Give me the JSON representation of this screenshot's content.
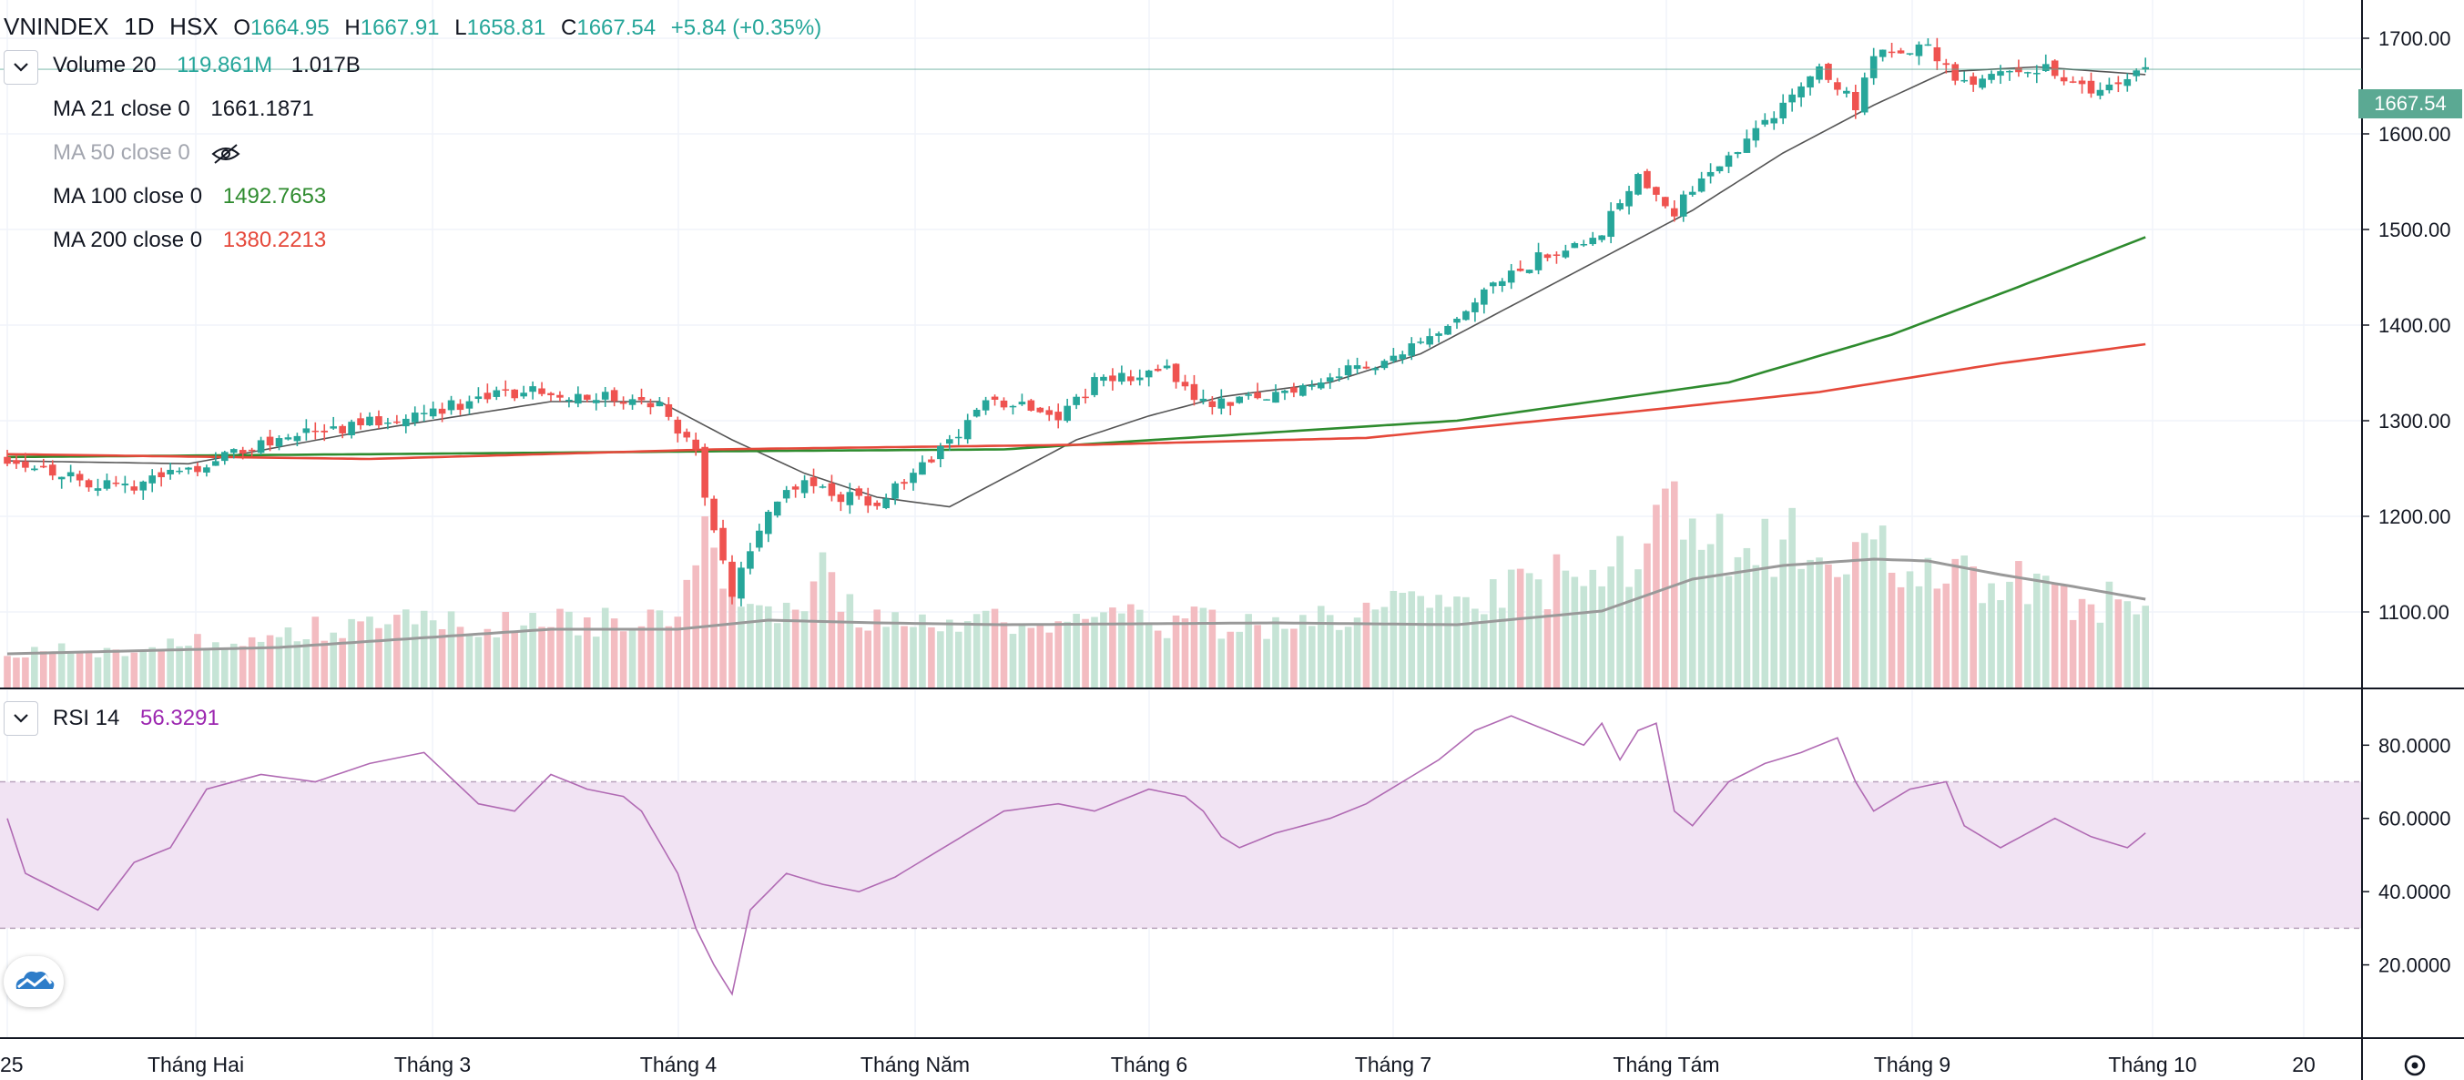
{
  "header": {
    "symbol": "VNINDEX",
    "interval": "1D",
    "exchange": "HSX",
    "open_label": "O",
    "open": "1664.95",
    "high_label": "H",
    "high": "1667.91",
    "low_label": "L",
    "low": "1658.81",
    "close_label": "C",
    "close": "1667.54",
    "change": "+5.84 (+0.35%)"
  },
  "indicators": {
    "volume": {
      "label": "Volume 20",
      "value1": "119.861M",
      "value2": "1.017B"
    },
    "ma21": {
      "label": "MA 21 close 0",
      "value": "1661.1871"
    },
    "ma50": {
      "label": "MA 50 close 0",
      "hidden": true
    },
    "ma100": {
      "label": "MA 100 close 0",
      "value": "1492.7653"
    },
    "ma200": {
      "label": "MA 200 close 0",
      "value": "1380.2213"
    },
    "rsi": {
      "label": "RSI 14",
      "value": "56.3291"
    }
  },
  "price_axis": {
    "ticks": [
      "1700.00",
      "1600.00",
      "1500.00",
      "1400.00",
      "1300.00",
      "1200.00",
      "1100.00"
    ],
    "current_price": "1667.54"
  },
  "rsi_axis": {
    "ticks": [
      "80.0000",
      "60.0000",
      "40.0000",
      "20.0000"
    ]
  },
  "time_axis": {
    "labels": [
      "25",
      "Tháng Hai",
      "Tháng 3",
      "Tháng 4",
      "Tháng Năm",
      "Tháng 6",
      "Tháng 7",
      "Tháng Tám",
      "Tháng 9",
      "Tháng 10",
      "20"
    ]
  },
  "colors": {
    "up": "#26a69a",
    "down": "#ef5350",
    "vol_up": "#c6e4d6",
    "vol_down": "#f3bcc1",
    "ma21": "#555555",
    "ma100": "#2e8b2e",
    "ma200": "#e5483a",
    "rsi_line": "#b06ab3",
    "rsi_band": "#f1e3f3"
  },
  "chart_data": [
    {
      "type": "candlestick",
      "title": "VNINDEX · 1D · HSX",
      "ylim": [
        1020,
        1740
      ],
      "anchors_x_index_close": [
        [
          0,
          1262
        ],
        [
          12,
          1228
        ],
        [
          20,
          1250
        ],
        [
          30,
          1282
        ],
        [
          40,
          1298
        ],
        [
          50,
          1318
        ],
        [
          58,
          1332
        ],
        [
          66,
          1325
        ],
        [
          72,
          1315
        ],
        [
          76,
          1268
        ],
        [
          78,
          1180
        ],
        [
          80,
          1120
        ],
        [
          82,
          1165
        ],
        [
          84,
          1210
        ],
        [
          88,
          1242
        ],
        [
          92,
          1220
        ],
        [
          96,
          1215
        ],
        [
          100,
          1240
        ],
        [
          104,
          1280
        ],
        [
          108,
          1318
        ],
        [
          112,
          1320
        ],
        [
          116,
          1305
        ],
        [
          120,
          1340
        ],
        [
          128,
          1352
        ],
        [
          132,
          1320
        ],
        [
          138,
          1322
        ],
        [
          144,
          1340
        ],
        [
          152,
          1365
        ],
        [
          158,
          1385
        ],
        [
          164,
          1440
        ],
        [
          170,
          1475
        ],
        [
          176,
          1500
        ],
        [
          180,
          1560
        ],
        [
          184,
          1520
        ],
        [
          188,
          1560
        ],
        [
          192,
          1595
        ],
        [
          196,
          1630
        ],
        [
          200,
          1670
        ],
        [
          204,
          1630
        ],
        [
          206,
          1680
        ],
        [
          212,
          1690
        ],
        [
          216,
          1650
        ],
        [
          220,
          1672
        ],
        [
          226,
          1665
        ],
        [
          230,
          1640
        ],
        [
          234,
          1660
        ],
        [
          236,
          1667
        ]
      ],
      "volume_anchors_x_index": [
        [
          0,
          38
        ],
        [
          20,
          48
        ],
        [
          40,
          70
        ],
        [
          60,
          72
        ],
        [
          74,
          70
        ],
        [
          76,
          160
        ],
        [
          78,
          150
        ],
        [
          80,
          130
        ],
        [
          84,
          80
        ],
        [
          88,
          85
        ],
        [
          90,
          120
        ],
        [
          94,
          80
        ],
        [
          100,
          70
        ],
        [
          110,
          75
        ],
        [
          120,
          75
        ],
        [
          140,
          70
        ],
        [
          160,
          100
        ],
        [
          170,
          115
        ],
        [
          180,
          150
        ],
        [
          182,
          205
        ],
        [
          186,
          200
        ],
        [
          190,
          160
        ],
        [
          200,
          165
        ],
        [
          206,
          150
        ],
        [
          212,
          140
        ],
        [
          220,
          120
        ],
        [
          226,
          100
        ],
        [
          236,
          90
        ]
      ],
      "series": [
        {
          "name": "MA 21",
          "anchors_x_index_value": [
            [
              0,
              1258
            ],
            [
              20,
              1255
            ],
            [
              40,
              1290
            ],
            [
              60,
              1320
            ],
            [
              72,
              1320
            ],
            [
              80,
              1280
            ],
            [
              88,
              1245
            ],
            [
              96,
              1220
            ],
            [
              104,
              1210
            ],
            [
              110,
              1240
            ],
            [
              118,
              1280
            ],
            [
              126,
              1305
            ],
            [
              134,
              1325
            ],
            [
              146,
              1340
            ],
            [
              156,
              1370
            ],
            [
              166,
              1420
            ],
            [
              176,
              1470
            ],
            [
              186,
              1520
            ],
            [
              196,
              1580
            ],
            [
              206,
              1630
            ],
            [
              214,
              1665
            ],
            [
              224,
              1670
            ],
            [
              236,
              1662
            ]
          ]
        },
        {
          "name": "MA 100",
          "anchors_x_index_value": [
            [
              0,
              1262
            ],
            [
              40,
              1265
            ],
            [
              78,
              1268
            ],
            [
              110,
              1270
            ],
            [
              130,
              1282
            ],
            [
              160,
              1300
            ],
            [
              190,
              1340
            ],
            [
              208,
              1390
            ],
            [
              222,
              1440
            ],
            [
              236,
              1492
            ]
          ]
        },
        {
          "name": "MA 200",
          "anchors_x_index_value": [
            [
              0,
              1265
            ],
            [
              40,
              1260
            ],
            [
              78,
              1270
            ],
            [
              120,
              1275
            ],
            [
              150,
              1282
            ],
            [
              180,
              1310
            ],
            [
              200,
              1330
            ],
            [
              220,
              1360
            ],
            [
              236,
              1380
            ]
          ]
        },
        {
          "name": "Volume MA",
          "anchors_x_index_value": [
            [
              0,
              38
            ],
            [
              30,
              45
            ],
            [
              60,
              65
            ],
            [
              74,
              65
            ],
            [
              84,
              75
            ],
            [
              96,
              72
            ],
            [
              110,
              70
            ],
            [
              140,
              72
            ],
            [
              160,
              70
            ],
            [
              176,
              85
            ],
            [
              186,
              120
            ],
            [
              196,
              135
            ],
            [
              206,
              142
            ],
            [
              212,
              140
            ],
            [
              220,
              125
            ],
            [
              228,
              112
            ],
            [
              236,
              98
            ]
          ]
        }
      ]
    },
    {
      "type": "line",
      "title": "RSI 14",
      "ylim": [
        0,
        95
      ],
      "band": [
        30,
        70
      ],
      "anchors_x_index_value": [
        [
          0,
          60
        ],
        [
          2,
          45
        ],
        [
          6,
          40
        ],
        [
          10,
          35
        ],
        [
          14,
          48
        ],
        [
          18,
          52
        ],
        [
          22,
          68
        ],
        [
          28,
          72
        ],
        [
          34,
          70
        ],
        [
          40,
          75
        ],
        [
          46,
          78
        ],
        [
          52,
          64
        ],
        [
          56,
          62
        ],
        [
          60,
          72
        ],
        [
          64,
          68
        ],
        [
          68,
          66
        ],
        [
          70,
          62
        ],
        [
          74,
          45
        ],
        [
          76,
          30
        ],
        [
          78,
          20
        ],
        [
          80,
          12
        ],
        [
          82,
          35
        ],
        [
          86,
          45
        ],
        [
          90,
          42
        ],
        [
          94,
          40
        ],
        [
          98,
          44
        ],
        [
          102,
          50
        ],
        [
          106,
          56
        ],
        [
          110,
          62
        ],
        [
          116,
          64
        ],
        [
          120,
          62
        ],
        [
          126,
          68
        ],
        [
          130,
          66
        ],
        [
          132,
          62
        ],
        [
          134,
          55
        ],
        [
          136,
          52
        ],
        [
          140,
          56
        ],
        [
          146,
          60
        ],
        [
          150,
          64
        ],
        [
          154,
          70
        ],
        [
          158,
          76
        ],
        [
          162,
          84
        ],
        [
          166,
          88
        ],
        [
          170,
          84
        ],
        [
          174,
          80
        ],
        [
          176,
          86
        ],
        [
          178,
          76
        ],
        [
          180,
          84
        ],
        [
          182,
          86
        ],
        [
          184,
          62
        ],
        [
          186,
          58
        ],
        [
          190,
          70
        ],
        [
          194,
          75
        ],
        [
          198,
          78
        ],
        [
          202,
          82
        ],
        [
          204,
          70
        ],
        [
          206,
          62
        ],
        [
          210,
          68
        ],
        [
          214,
          70
        ],
        [
          216,
          58
        ],
        [
          220,
          52
        ],
        [
          226,
          60
        ],
        [
          230,
          55
        ],
        [
          234,
          52
        ],
        [
          236,
          56
        ]
      ]
    }
  ]
}
